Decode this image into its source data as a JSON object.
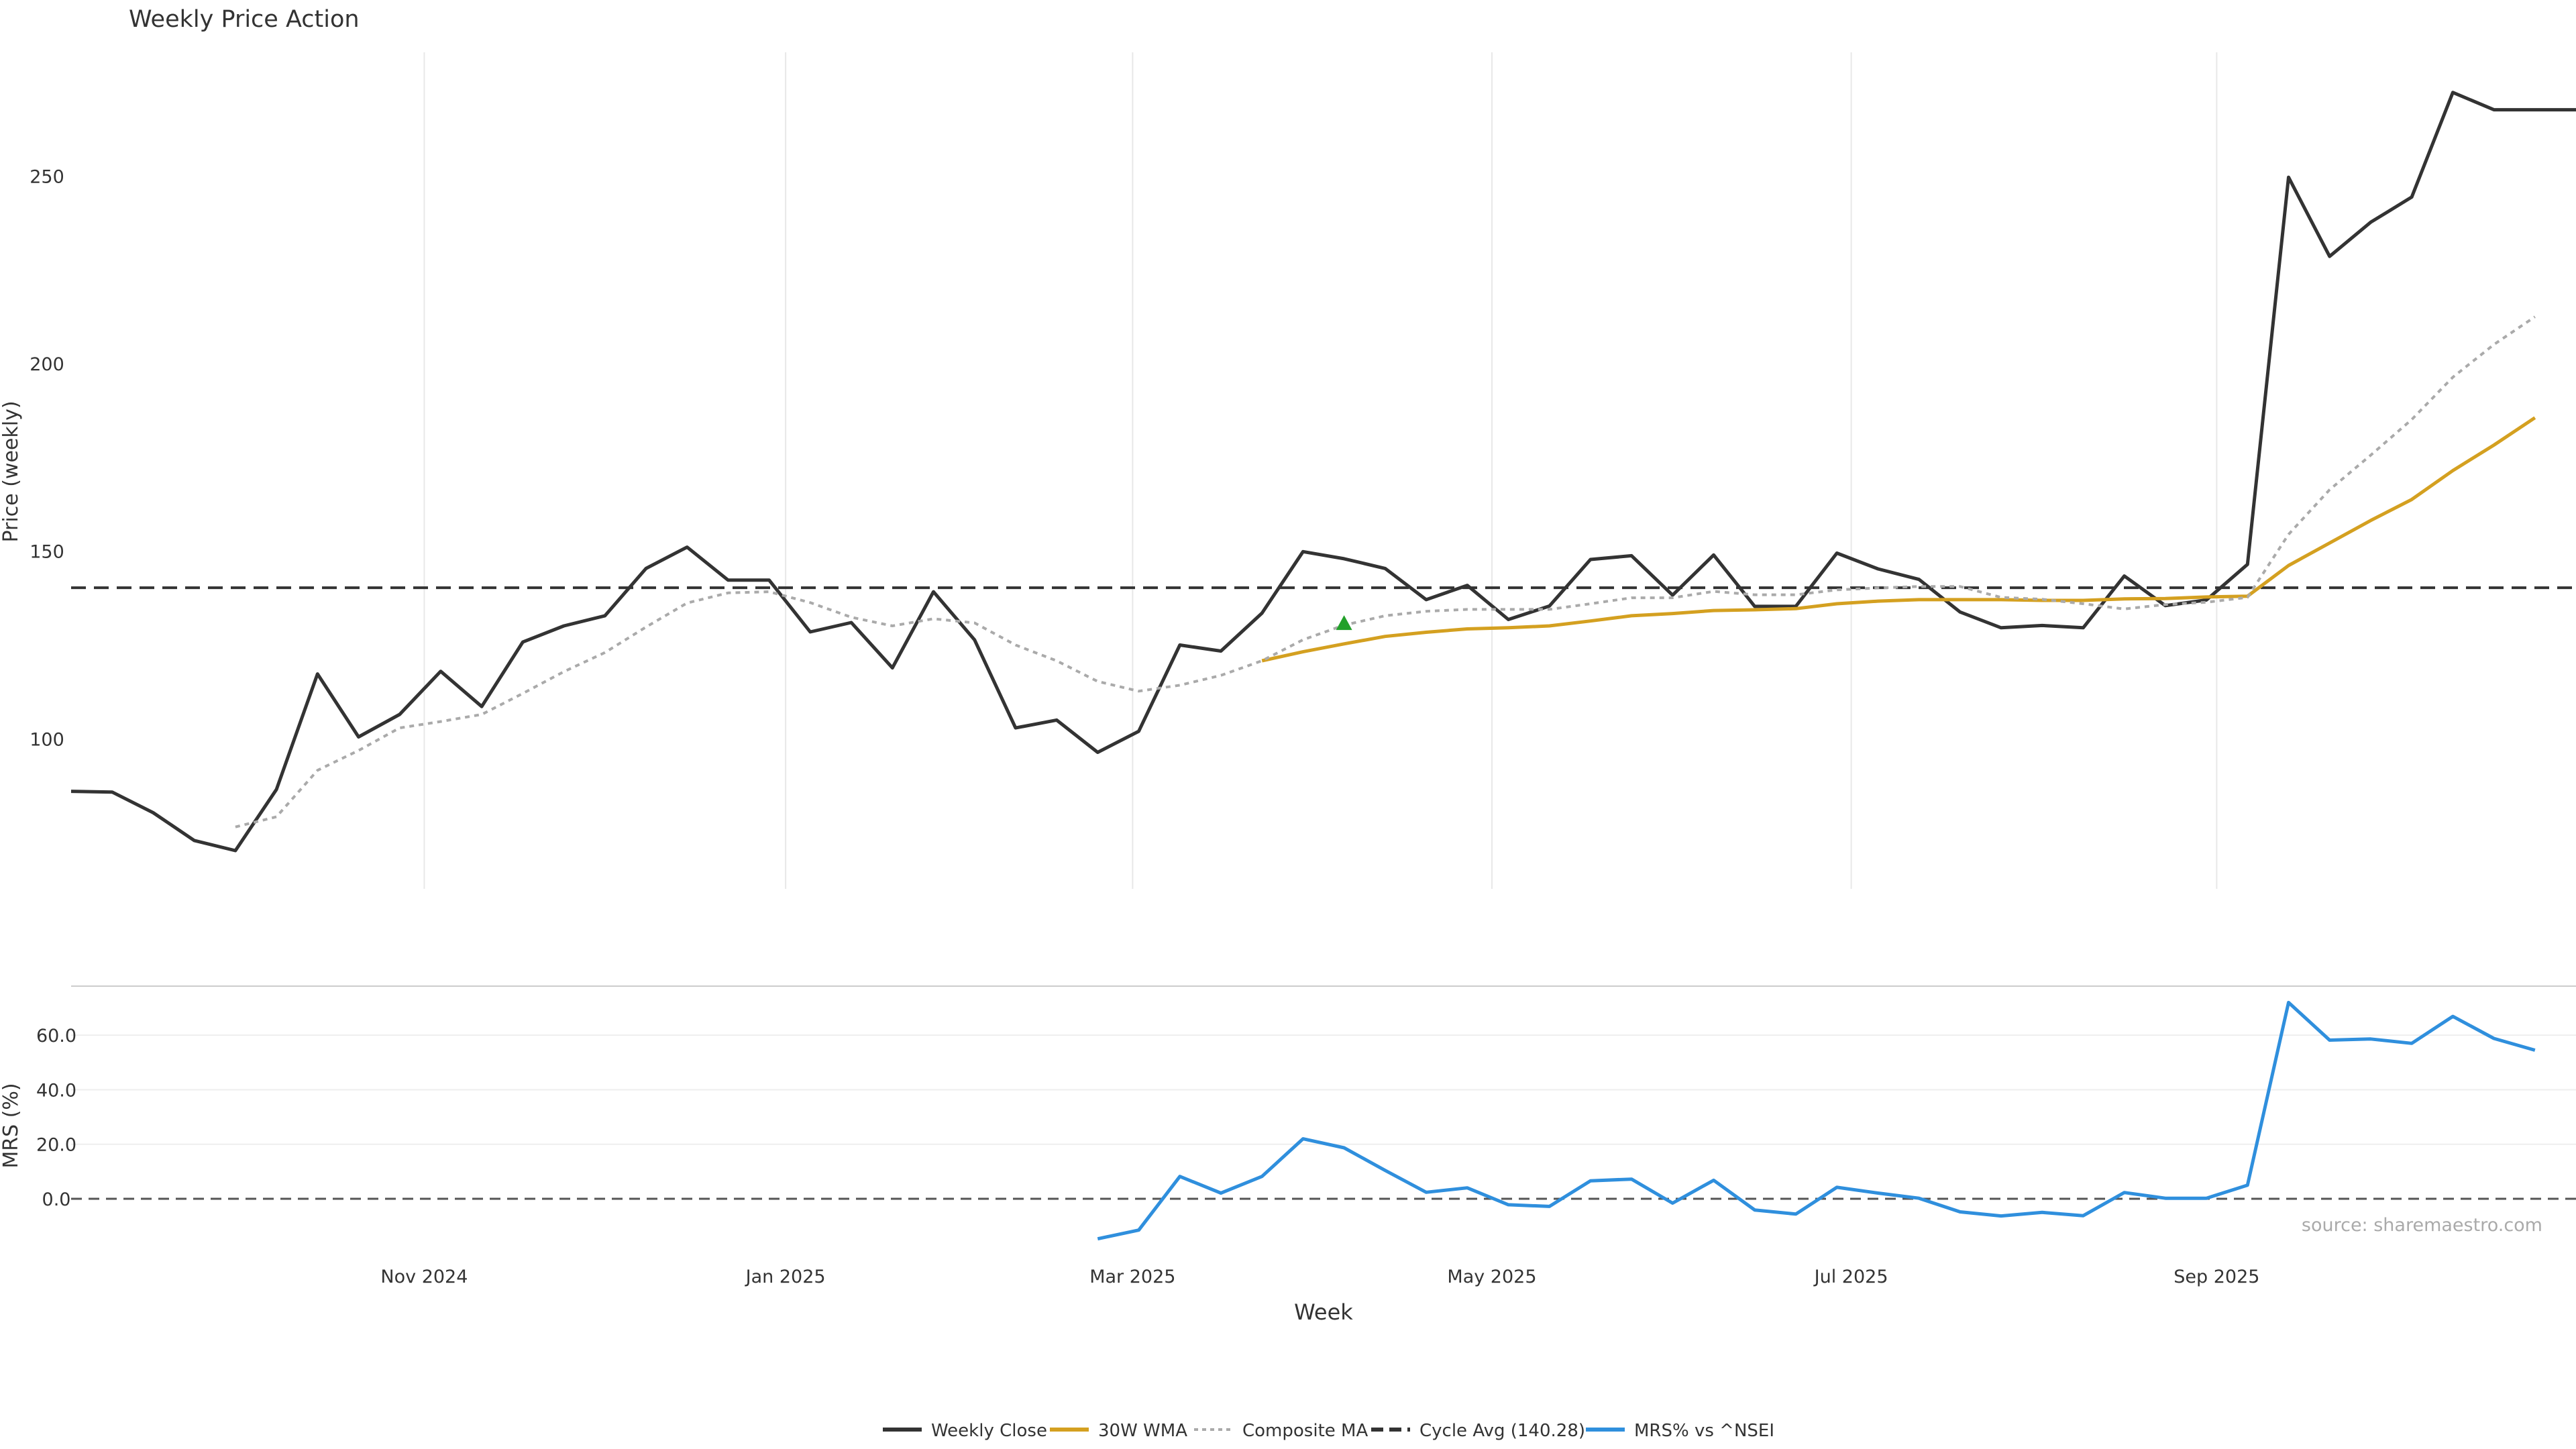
{
  "chart_data": [
    {
      "type": "line",
      "panel": "price",
      "title": "Weekly Price Action",
      "ylabel": "Price (weekly)",
      "xlabel": "",
      "ylim": [
        60,
        283
      ],
      "yticks": [
        100,
        150,
        200,
        250
      ],
      "grid": "vertical",
      "week_count": 62,
      "cycle_avg": 140.28,
      "series": [
        {
          "name": "Weekly Close",
          "color": "#333333",
          "start_index": 0,
          "values": [
            86,
            85.8,
            80.3,
            72.9,
            70.2,
            86.5,
            117.3,
            100.5,
            106.5,
            118,
            108.6,
            125.8,
            130.1,
            132.8,
            145.4,
            151.1,
            142.3,
            142.3,
            128.5,
            131,
            118.9,
            139.2,
            126.4,
            102.9,
            105,
            96.4,
            102,
            125,
            123.4,
            133.5,
            149.9,
            148,
            145.4,
            137.1,
            140.9,
            131.8,
            135.4,
            147.8,
            148.8,
            138.3,
            149,
            135.3,
            135.3,
            149.5,
            145.3,
            142.5,
            133.8,
            129.6,
            130.2,
            129.6,
            143.4,
            135.5,
            137,
            146.5,
            249.7,
            228.6,
            237.7,
            244.4,
            272.3,
            267.7,
            267.7,
            267.7
          ]
        },
        {
          "name": "30W WMA",
          "color": "#d4a020",
          "start_index": 29,
          "values": [
            120.8,
            123.2,
            125.3,
            127.3,
            128.4,
            129.3,
            129.6,
            130.1,
            131.4,
            132.8,
            133.4,
            134.2,
            134.4,
            134.7,
            136,
            136.7,
            137.1,
            137.1,
            137.1,
            136.9,
            136.9,
            137.3,
            137.4,
            137.8,
            138,
            146.2,
            152.2,
            158.2,
            163.8,
            171.5,
            178.3,
            185.6
          ]
        },
        {
          "name": "Composite MA",
          "color": "#aaaaaa",
          "start_index": 4,
          "values": [
            76.5,
            79.2,
            91.6,
            96.9,
            102.9,
            104.6,
            106.5,
            112.1,
            117.9,
            123,
            129.8,
            136.2,
            138.9,
            139.2,
            136.3,
            132.4,
            130.1,
            132,
            130.9,
            125,
            120.8,
            115.3,
            112.7,
            114.3,
            116.9,
            120.8,
            126.4,
            130.3,
            132.8,
            134,
            134.5,
            134.5,
            134.5,
            136,
            137.6,
            137.6,
            139.3,
            138.4,
            138.4,
            139.7,
            140.2,
            140.6,
            140.6,
            137.7,
            137.2,
            136,
            134.6,
            135.8,
            136.4,
            137.7,
            154.5,
            166.4,
            175.6,
            185.1,
            196.4,
            205.1,
            212.5
          ]
        }
      ],
      "reference_lines": [
        {
          "name": "Cycle Avg (140.28)",
          "value": 140.28,
          "style": "dashed",
          "color": "#333333"
        }
      ],
      "markers": [
        {
          "name": "buy-signal",
          "index": 31,
          "value": 130.8,
          "shape": "triangle-up",
          "color": "#22a02a"
        }
      ]
    },
    {
      "type": "line",
      "panel": "mrs",
      "title": "",
      "ylabel": "MRS (%)",
      "xlabel": "Week",
      "ylim": [
        -15.5,
        78
      ],
      "yticks": [
        0,
        20,
        40,
        60
      ],
      "ytick_labels": [
        "0.0",
        "20.0",
        "40.0",
        "60.0"
      ],
      "grid": "horizontal",
      "xticks": [
        {
          "label": "Nov 2024",
          "index": 8.6
        },
        {
          "label": "Jan 2025",
          "index": 17.4
        },
        {
          "label": "Mar 2025",
          "index": 25.85
        },
        {
          "label": "May 2025",
          "index": 34.6
        },
        {
          "label": "Jul 2025",
          "index": 43.35
        },
        {
          "label": "Sep 2025",
          "index": 52.25
        }
      ],
      "series": [
        {
          "name": "MRS% vs ^NSEI",
          "color": "#2f8fdd",
          "start_index": 25,
          "values": [
            -14.7,
            -11.5,
            8.2,
            2.1,
            8.2,
            22,
            18.7,
            10.4,
            2.4,
            4,
            -2.2,
            -2.8,
            6.6,
            7.2,
            -1.6,
            6.8,
            -4.1,
            -5.6,
            4.2,
            2.1,
            0.2,
            -4.8,
            -6.3,
            -5,
            -6.2,
            2.3,
            0.2,
            0.2,
            5,
            72,
            58.2,
            58.6,
            57,
            66.9,
            58.8,
            54.5
          ]
        }
      ],
      "reference_lines": [
        {
          "name": "zero-line",
          "value": 0,
          "style": "dashed",
          "color": "#555555"
        }
      ]
    }
  ],
  "legend": {
    "placement": "bottom-center",
    "items": [
      {
        "label": "Weekly Close",
        "color": "#333333",
        "style": "solid"
      },
      {
        "label": "30W WMA",
        "color": "#d4a020",
        "style": "solid"
      },
      {
        "label": "Composite MA",
        "color": "#aaaaaa",
        "style": "dotted"
      },
      {
        "label": "Cycle Avg (140.28)",
        "color": "#333333",
        "style": "dashed"
      },
      {
        "label": "MRS% vs ^NSEI",
        "color": "#2f8fdd",
        "style": "solid"
      }
    ]
  },
  "watermark": "source: sharemaestro.com"
}
